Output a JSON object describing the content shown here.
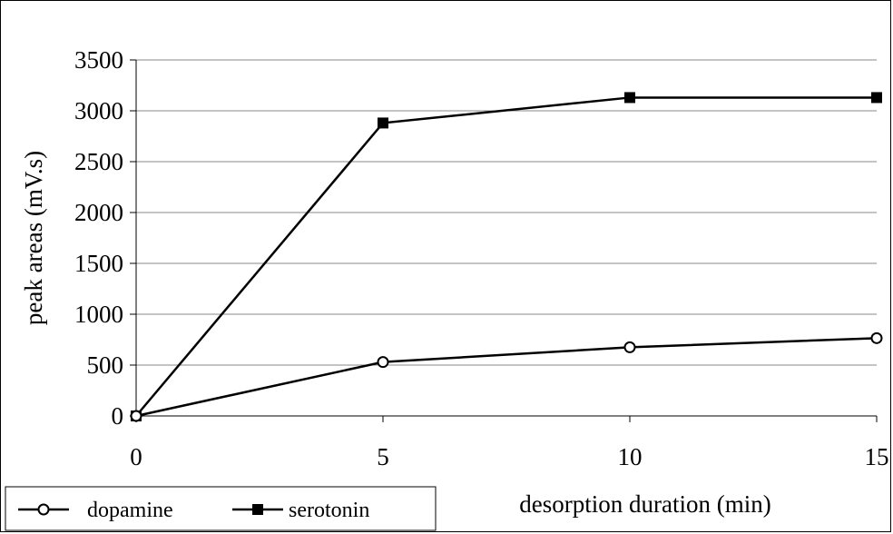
{
  "chart_data": {
    "type": "line",
    "title": "",
    "xlabel": "desorption duration (min)",
    "ylabel": "peak areas (mV.s)",
    "x": [
      0,
      5,
      10,
      15
    ],
    "xlim": [
      0,
      15
    ],
    "ylim": [
      0,
      3500
    ],
    "xticks": [
      "0",
      "5",
      "10",
      "15"
    ],
    "yticks": [
      "0",
      "500",
      "1000",
      "1500",
      "2000",
      "2500",
      "3000",
      "3500"
    ],
    "grid": "horizontal",
    "legend_placement": "bottom-left",
    "series": [
      {
        "name": "dopamine",
        "marker": "open-circle",
        "values": [
          0,
          530,
          675,
          765
        ],
        "color": "#000000"
      },
      {
        "name": "serotonin",
        "marker": "filled-square",
        "values": [
          0,
          2880,
          3130,
          3130
        ],
        "color": "#000000"
      }
    ]
  }
}
